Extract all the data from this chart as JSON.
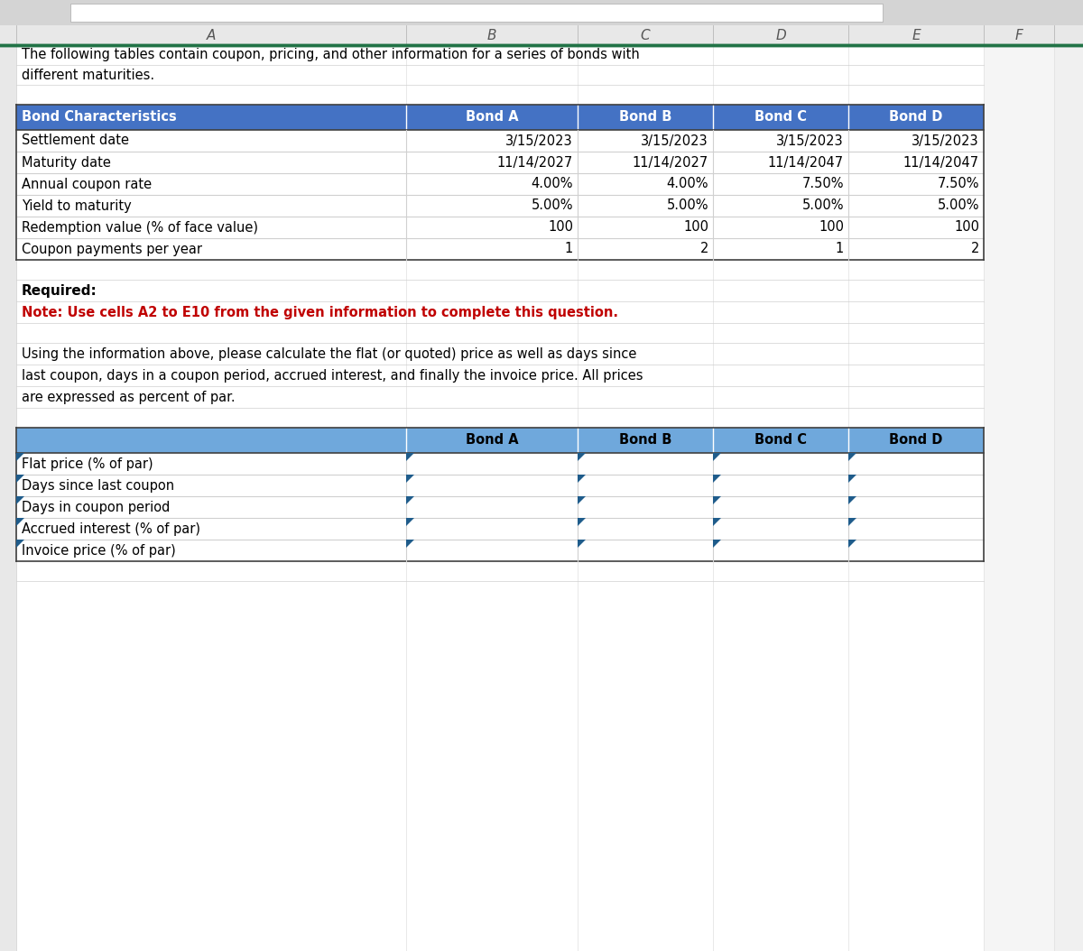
{
  "col_headers": [
    "A",
    "B",
    "C",
    "D",
    "E",
    "F"
  ],
  "intro_text_line1": "The following tables contain coupon, pricing, and other information for a series of bonds with",
  "intro_text_line2": "different maturities.",
  "table1_header": [
    "Bond Characteristics",
    "Bond A",
    "Bond B",
    "Bond C",
    "Bond D"
  ],
  "table1_header_bg": "#4472c4",
  "table1_rows": [
    [
      "Settlement date",
      "3/15/2023",
      "3/15/2023",
      "3/15/2023",
      "3/15/2023"
    ],
    [
      "Maturity date",
      "11/14/2027",
      "11/14/2027",
      "11/14/2047",
      "11/14/2047"
    ],
    [
      "Annual coupon rate",
      "4.00%",
      "4.00%",
      "7.50%",
      "7.50%"
    ],
    [
      "Yield to maturity",
      "5.00%",
      "5.00%",
      "5.00%",
      "5.00%"
    ],
    [
      "Redemption value (% of face value)",
      "100",
      "100",
      "100",
      "100"
    ],
    [
      "Coupon payments per year",
      "1",
      "2",
      "1",
      "2"
    ]
  ],
  "required_label": "Required:",
  "note_text": "Note: Use cells A2 to E10 from the given information to complete this question.",
  "note_color": "#c00000",
  "instruction_lines": [
    "Using the information above, please calculate the flat (or quoted) price as well as days since",
    "last coupon, days in a coupon period, accrued interest, and finally the invoice price. All prices",
    "are expressed as percent of par."
  ],
  "table2_header": [
    "",
    "Bond A",
    "Bond B",
    "Bond C",
    "Bond D"
  ],
  "table2_header_bg": "#6fa8dc",
  "table2_rows": [
    [
      "Flat price (% of par)",
      "",
      "",
      "",
      ""
    ],
    [
      "Days since last coupon",
      "",
      "",
      "",
      ""
    ],
    [
      "Days in coupon period",
      "",
      "",
      "",
      ""
    ],
    [
      "Accrued interest (% of par)",
      "",
      "",
      "",
      ""
    ],
    [
      "Invoice price (% of par)",
      "",
      "",
      "",
      ""
    ]
  ],
  "bg_color": "#f0f0f0",
  "fig_width": 12.0,
  "fig_height": 10.54
}
